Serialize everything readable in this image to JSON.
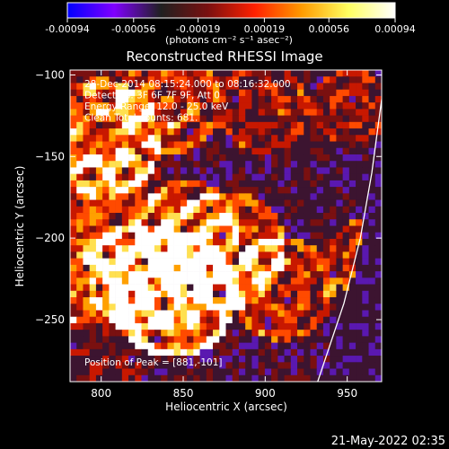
{
  "chart_data": {
    "type": "heatmap",
    "title": "Reconstructed RHESSI Image",
    "xlabel": "Heliocentric X (arcsec)",
    "ylabel": "Heliocentric Y (arcsec)",
    "xlim": [
      781,
      971
    ],
    "ylim": [
      -288,
      -97
    ],
    "x_ticks": [
      800,
      850,
      900,
      950
    ],
    "y_ticks": [
      -100,
      -150,
      -200,
      -250
    ],
    "colorbar": {
      "range": [
        -0.00094,
        0.00094
      ],
      "tick_values": [
        -0.00094,
        -0.00056,
        -0.00019,
        0.00019,
        0.00056,
        0.00094
      ],
      "tick_labels": [
        "-0.00094",
        "-0.00056",
        "-0.00019",
        "0.00019",
        "0.00056",
        "0.00094"
      ],
      "unit_label": "(photons cm⁻² s⁻¹ asec⁻²)",
      "colormap": [
        "#0000ff",
        "#8000ff",
        "#202020",
        "#7a1010",
        "#ff2000",
        "#ff9a00",
        "#ffff60",
        "#ffffff"
      ]
    },
    "annotations": [
      "28-Dec-2014 08:15:24.000 to 08:16:32.000",
      "Detectors: 3F 6F 7F 9F, Att 0",
      "Energy Range: 12.0 - 25.0 keV",
      "Clean     Total counts: 681."
    ],
    "peak_label": "Position of Peak = [881,-101]",
    "peak": {
      "x": 881,
      "y": -101
    },
    "limb_curve": [
      [
        932,
        -288
      ],
      [
        948,
        -240
      ],
      [
        958,
        -200
      ],
      [
        965,
        -160
      ],
      [
        971,
        -115
      ]
    ],
    "timestamp": "21-May-2022 02:35"
  }
}
